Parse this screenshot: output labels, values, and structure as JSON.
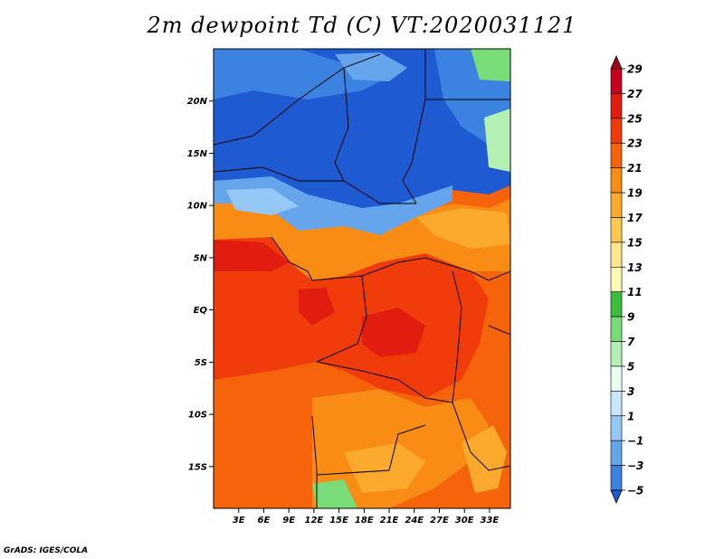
{
  "title": "2m dewpoint Td (C) VT:2020031121",
  "footer": "GrADS: IGES/COLA",
  "map": {
    "lat_range": [
      -19,
      25
    ],
    "lon_range": [
      0,
      35.5
    ],
    "lat_ticks": [
      {
        "value": 20,
        "label": "20N"
      },
      {
        "value": 15,
        "label": "15N"
      },
      {
        "value": 10,
        "label": "10N"
      },
      {
        "value": 5,
        "label": "5N"
      },
      {
        "value": 0,
        "label": "EQ"
      },
      {
        "value": -5,
        "label": "5S"
      },
      {
        "value": -10,
        "label": "10S"
      },
      {
        "value": -15,
        "label": "15S"
      }
    ],
    "lon_ticks": [
      {
        "value": 3,
        "label": "3E"
      },
      {
        "value": 6,
        "label": "6E"
      },
      {
        "value": 9,
        "label": "9E"
      },
      {
        "value": 12,
        "label": "12E"
      },
      {
        "value": 15,
        "label": "15E"
      },
      {
        "value": 18,
        "label": "18E"
      },
      {
        "value": 21,
        "label": "21E"
      },
      {
        "value": 24,
        "label": "24E"
      },
      {
        "value": 27,
        "label": "27E"
      },
      {
        "value": 30,
        "label": "30E"
      },
      {
        "value": 33,
        "label": "33E"
      }
    ]
  },
  "colorbar": {
    "levels": [
      "29",
      "27",
      "25",
      "23",
      "21",
      "19",
      "17",
      "15",
      "13",
      "11",
      "9",
      "7",
      "5",
      "3",
      "1",
      "−1",
      "−3",
      "−5"
    ],
    "colors": [
      "#a50015",
      "#c8001e",
      "#e11d10",
      "#f03c0a",
      "#f5640a",
      "#f88c14",
      "#fbaa2d",
      "#fcc850",
      "#fde68c",
      "#fefab4",
      "#3cbe3c",
      "#78dc78",
      "#b4f0b4",
      "#e6fff0",
      "#c8e6ff",
      "#96c8f5",
      "#64a5eb",
      "#3c82e1",
      "#1e5ad2"
    ],
    "colors_note": ""
  }
}
